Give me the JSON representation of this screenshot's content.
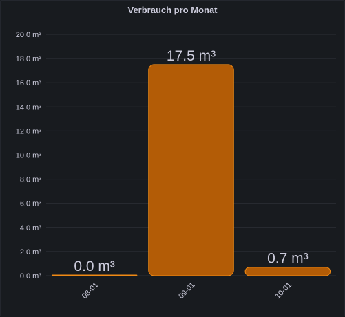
{
  "panel": {
    "title": "Verbrauch pro Monat"
  },
  "chart_data": {
    "type": "bar",
    "title": "Verbrauch pro Monat",
    "categories": [
      "08-01",
      "09-01",
      "10-01"
    ],
    "values": [
      0.0,
      17.5,
      0.7
    ],
    "data_labels": [
      "0.0 m³",
      "17.5 m³",
      "0.7 m³"
    ],
    "unit": "m³",
    "ylim": [
      0,
      20
    ],
    "yticks": [
      "0.0 m³",
      "2.0 m³",
      "4.0 m³",
      "6.0 m³",
      "8.0 m³",
      "10.0 m³",
      "12.0 m³",
      "14.0 m³",
      "16.0 m³",
      "18.0 m³",
      "20.0 m³"
    ],
    "grid": true,
    "legend": "none",
    "colors": {
      "bar_fill": "#b35c06",
      "bar_stroke": "#f08a14",
      "grid": "#2c2f36",
      "background": "#181b1f"
    }
  }
}
